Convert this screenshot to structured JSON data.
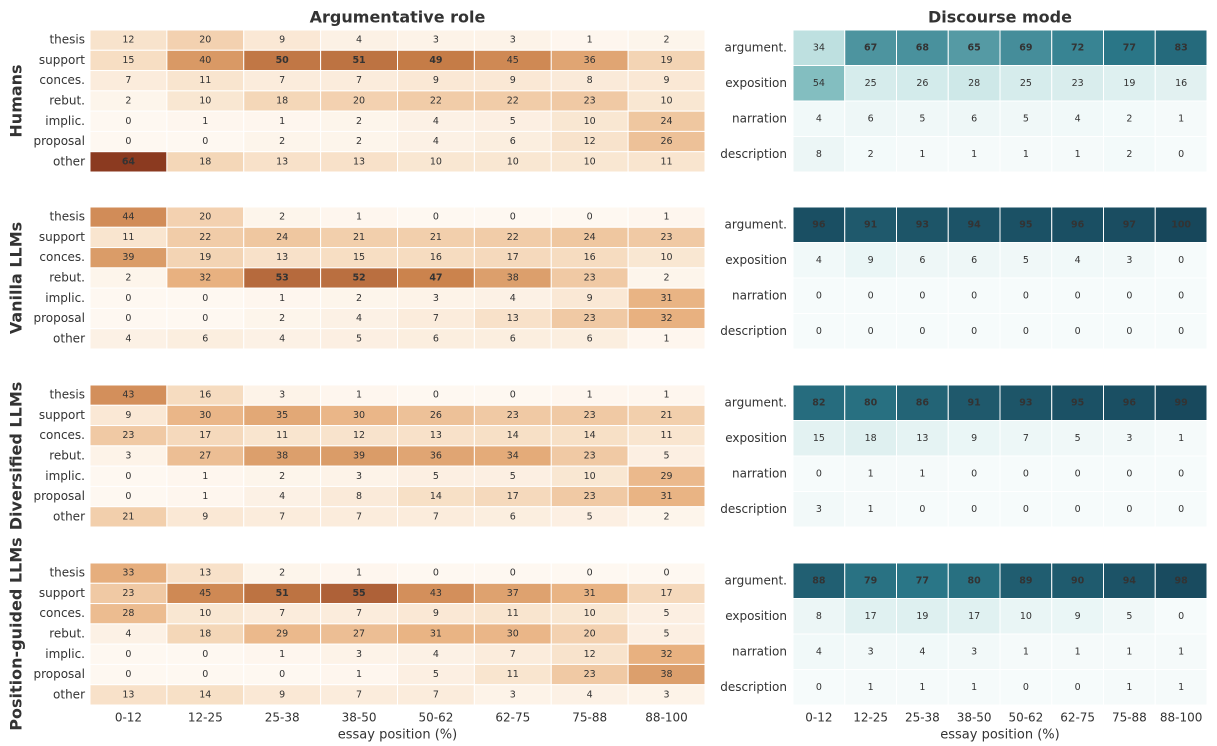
{
  "group_labels": [
    "Humans",
    "Vanilla LLMs",
    "Diversified LLMs",
    "Position-guided LLMs"
  ],
  "chart_data": [
    {
      "type": "heatmap",
      "title": "Argumentative role",
      "xlabel": "essay position (%)",
      "x": [
        "0-12",
        "12-25",
        "25-38",
        "38-50",
        "50-62",
        "62-75",
        "75-88",
        "88-100"
      ],
      "colors": [
        "#fef8f1",
        "#f6dcc0",
        "#e8b180",
        "#c9804a",
        "#8b3a20"
      ],
      "groups": [
        {
          "rows": [
            "thesis",
            "support",
            "conces.",
            "rebut.",
            "implic.",
            "proposal",
            "other"
          ],
          "values": [
            [
              12,
              20,
              9,
              4,
              3,
              3,
              1,
              2
            ],
            [
              15,
              40,
              50,
              51,
              49,
              45,
              36,
              19
            ],
            [
              7,
              11,
              7,
              7,
              9,
              9,
              8,
              9
            ],
            [
              2,
              10,
              18,
              20,
              22,
              22,
              23,
              10
            ],
            [
              0,
              1,
              1,
              2,
              4,
              5,
              10,
              24
            ],
            [
              0,
              0,
              2,
              2,
              4,
              6,
              12,
              26
            ],
            [
              64,
              18,
              13,
              13,
              10,
              10,
              10,
              11
            ]
          ]
        },
        {
          "rows": [
            "thesis",
            "support",
            "conces.",
            "rebut.",
            "implic.",
            "proposal",
            "other"
          ],
          "values": [
            [
              44,
              20,
              2,
              1,
              0,
              0,
              0,
              1
            ],
            [
              11,
              22,
              24,
              21,
              21,
              22,
              24,
              23
            ],
            [
              39,
              19,
              13,
              15,
              16,
              17,
              16,
              10
            ],
            [
              2,
              32,
              53,
              52,
              47,
              38,
              23,
              2
            ],
            [
              0,
              0,
              1,
              2,
              3,
              4,
              9,
              31
            ],
            [
              0,
              0,
              2,
              4,
              7,
              13,
              23,
              32
            ],
            [
              4,
              6,
              4,
              5,
              6,
              6,
              6,
              1
            ]
          ]
        },
        {
          "rows": [
            "thesis",
            "support",
            "conces.",
            "rebut.",
            "implic.",
            "proposal",
            "other"
          ],
          "values": [
            [
              43,
              16,
              3,
              1,
              0,
              0,
              1,
              1
            ],
            [
              9,
              30,
              35,
              30,
              26,
              23,
              23,
              21
            ],
            [
              23,
              17,
              11,
              12,
              13,
              14,
              14,
              11
            ],
            [
              3,
              27,
              38,
              39,
              36,
              34,
              23,
              5
            ],
            [
              0,
              1,
              2,
              3,
              5,
              5,
              10,
              29
            ],
            [
              0,
              1,
              4,
              8,
              14,
              17,
              23,
              31
            ],
            [
              21,
              9,
              7,
              7,
              7,
              6,
              5,
              2
            ]
          ]
        },
        {
          "rows": [
            "thesis",
            "support",
            "conces.",
            "rebut.",
            "implic.",
            "proposal",
            "other"
          ],
          "values": [
            [
              33,
              13,
              2,
              1,
              0,
              0,
              0,
              0
            ],
            [
              23,
              45,
              51,
              55,
              43,
              37,
              31,
              17
            ],
            [
              28,
              10,
              7,
              7,
              9,
              11,
              10,
              5
            ],
            [
              4,
              18,
              29,
              27,
              31,
              30,
              20,
              5
            ],
            [
              0,
              0,
              1,
              3,
              4,
              7,
              12,
              32
            ],
            [
              0,
              0,
              0,
              1,
              5,
              11,
              23,
              38
            ],
            [
              13,
              14,
              9,
              7,
              7,
              3,
              4,
              3
            ]
          ]
        }
      ]
    },
    {
      "type": "heatmap",
      "title": "Discourse mode",
      "xlabel": "essay position (%)",
      "x": [
        "0-12",
        "12-25",
        "25-38",
        "38-50",
        "50-62",
        "62-75",
        "75-88",
        "88-100"
      ],
      "colors": [
        "#f6fbfb",
        "#d6ecec",
        "#93cbca",
        "#2c7a8b",
        "#17475b"
      ],
      "groups": [
        {
          "rows": [
            "argument.",
            "exposition",
            "narration",
            "description"
          ],
          "values": [
            [
              34,
              67,
              68,
              65,
              69,
              72,
              77,
              83
            ],
            [
              54,
              25,
              26,
              28,
              25,
              23,
              19,
              16
            ],
            [
              4,
              6,
              5,
              6,
              5,
              4,
              2,
              1
            ],
            [
              8,
              2,
              1,
              1,
              1,
              1,
              2,
              0
            ]
          ]
        },
        {
          "rows": [
            "argument.",
            "exposition",
            "narration",
            "description"
          ],
          "values": [
            [
              96,
              91,
              93,
              94,
              95,
              96,
              97,
              100
            ],
            [
              4,
              9,
              6,
              6,
              5,
              4,
              3,
              0
            ],
            [
              0,
              0,
              0,
              0,
              0,
              0,
              0,
              0
            ],
            [
              0,
              0,
              0,
              0,
              0,
              0,
              0,
              0
            ]
          ]
        },
        {
          "rows": [
            "argument.",
            "exposition",
            "narration",
            "description"
          ],
          "values": [
            [
              82,
              80,
              86,
              91,
              93,
              95,
              96,
              99
            ],
            [
              15,
              18,
              13,
              9,
              7,
              5,
              3,
              1
            ],
            [
              0,
              1,
              1,
              0,
              0,
              0,
              0,
              0
            ],
            [
              3,
              1,
              0,
              0,
              0,
              0,
              0,
              0
            ]
          ]
        },
        {
          "rows": [
            "argument.",
            "exposition",
            "narration",
            "description"
          ],
          "values": [
            [
              88,
              79,
              77,
              80,
              89,
              90,
              94,
              98
            ],
            [
              8,
              17,
              19,
              17,
              10,
              9,
              5,
              0
            ],
            [
              4,
              3,
              4,
              3,
              1,
              1,
              1,
              1
            ],
            [
              0,
              1,
              1,
              1,
              0,
              0,
              1,
              1
            ]
          ]
        }
      ]
    }
  ]
}
